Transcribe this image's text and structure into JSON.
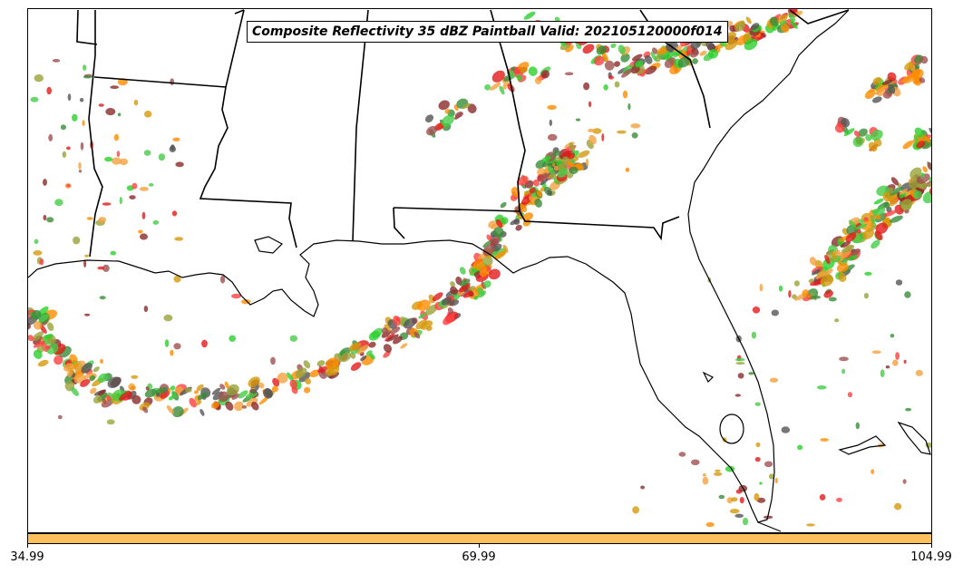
{
  "title": "Composite Reflectivity 35 dBZ Paintball Valid: 202105120000f014",
  "colorbar": {
    "color": "#ffc15c",
    "ticks": [
      "34.99",
      "69.99",
      "104.99"
    ]
  },
  "paint_colors": [
    "#e31a1c",
    "#ff4040",
    "#ff8c00",
    "#f4a340",
    "#d49a0c",
    "#9aa33a",
    "#2bd12b",
    "#46cc46",
    "#3a8c3a",
    "#8b2a2a",
    "#a05050",
    "#555555"
  ],
  "map_features": [
    "state-borders",
    "coastline",
    "florida",
    "louisiana",
    "mississippi",
    "alabama",
    "georgia",
    "south-carolina",
    "gulf-of-mexico",
    "atlantic-ocean"
  ]
}
